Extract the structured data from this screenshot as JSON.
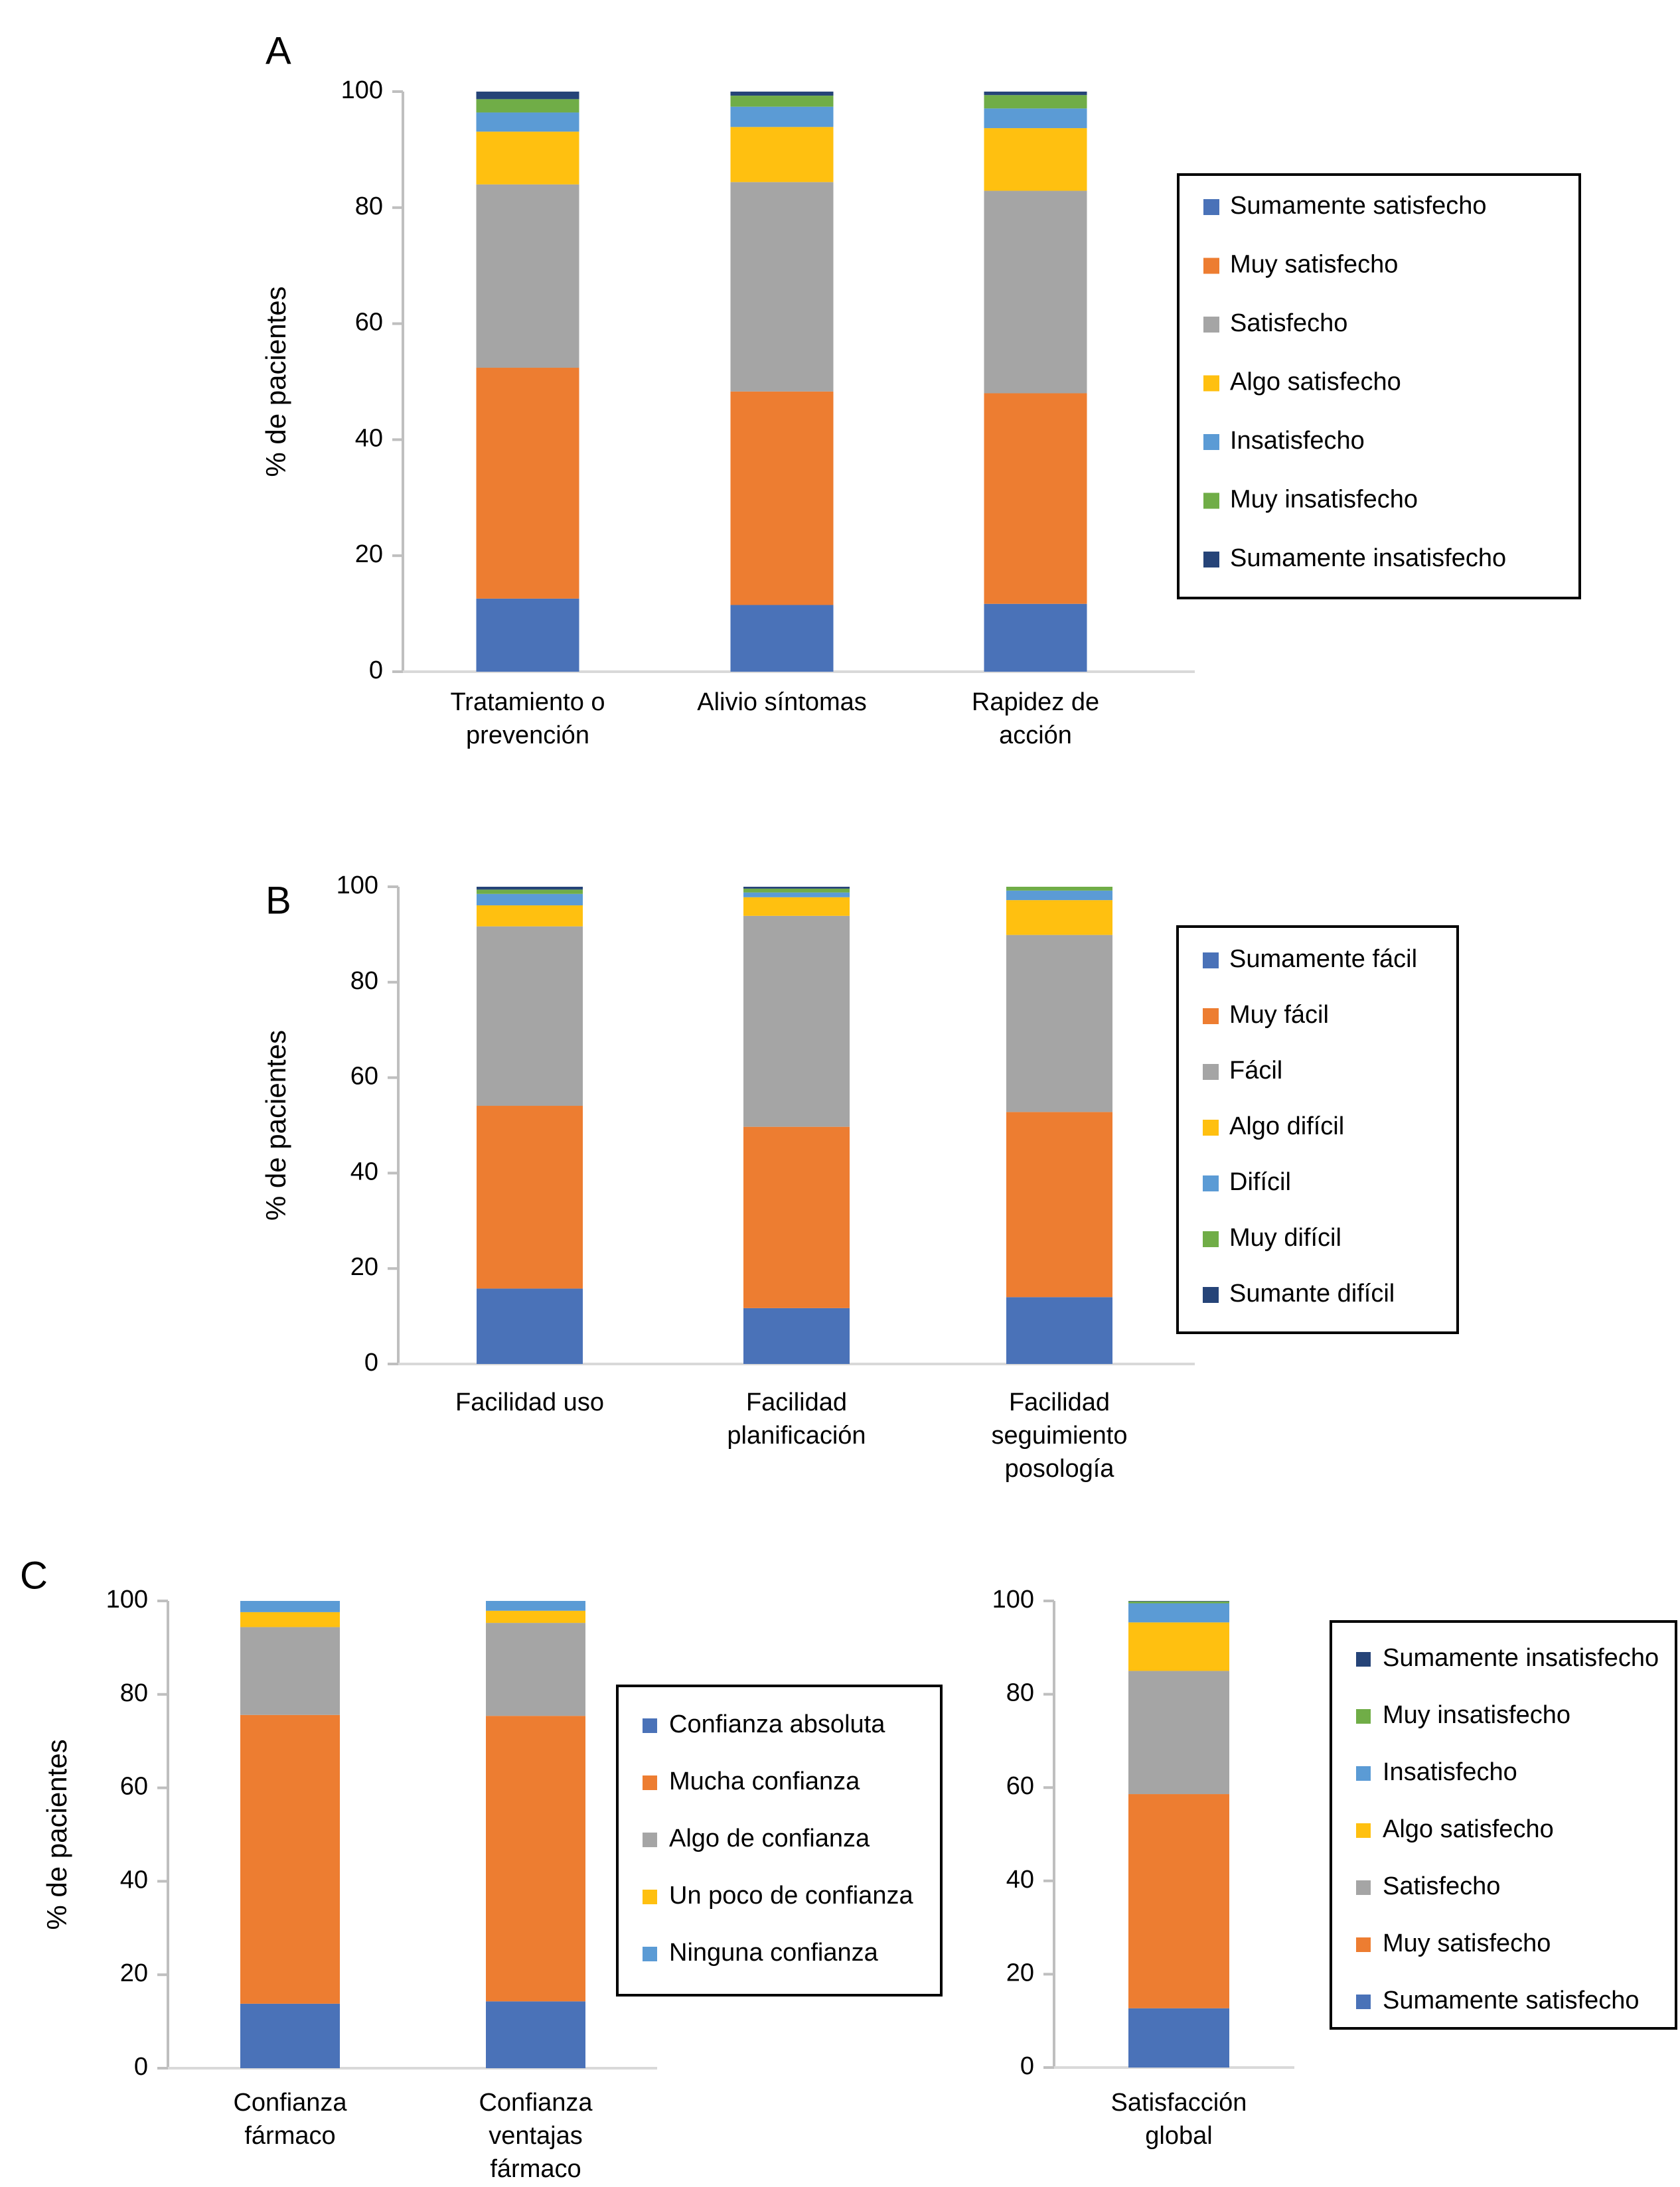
{
  "colors": {
    "blue": "#4a72b8",
    "orange": "#ed7d31",
    "gray": "#a5a5a5",
    "yellow": "#ffc010",
    "lightblue": "#5b9bd5",
    "green": "#70ad47",
    "navy": "#264478",
    "axis": "#bfbfbf"
  },
  "chart_data": [
    {
      "id": "A",
      "panel_label": "A",
      "type": "bar",
      "stacked": true,
      "ylabel": "% de pacientes",
      "ylim": [
        0,
        100
      ],
      "yticks": [
        0,
        20,
        40,
        60,
        80,
        100
      ],
      "categories": [
        "Tratamiento o prevención",
        "Alivio síntomas",
        "Rapidez de acción"
      ],
      "category_lines": [
        [
          "Tratamiento o",
          "prevención"
        ],
        [
          "Alivio síntomas"
        ],
        [
          "Rapidez de",
          "acción"
        ]
      ],
      "legend_position": "right",
      "legend_order": [
        0,
        1,
        2,
        3,
        4,
        5,
        6
      ],
      "series": [
        {
          "name": "Sumamente satisfecho",
          "color": "#4a72b8",
          "values": [
            12.6,
            11.5,
            11.7
          ]
        },
        {
          "name": "Muy satisfecho",
          "color": "#ed7d31",
          "values": [
            39.8,
            36.8,
            36.3
          ]
        },
        {
          "name": "Satisfecho",
          "color": "#a5a5a5",
          "values": [
            31.6,
            36.1,
            34.9
          ]
        },
        {
          "name": "Algo satisfecho",
          "color": "#ffc010",
          "values": [
            9.1,
            9.5,
            10.8
          ]
        },
        {
          "name": "Insatisfecho",
          "color": "#5b9bd5",
          "values": [
            3.3,
            3.5,
            3.4
          ]
        },
        {
          "name": "Muy insatisfecho",
          "color": "#70ad47",
          "values": [
            2.3,
            1.9,
            2.3
          ]
        },
        {
          "name": "Sumamente insatisfecho",
          "color": "#264478",
          "values": [
            1.3,
            0.7,
            0.6
          ]
        }
      ]
    },
    {
      "id": "B",
      "panel_label": "B",
      "type": "bar",
      "stacked": true,
      "ylabel": "% de pacientes",
      "ylim": [
        0,
        100
      ],
      "yticks": [
        0,
        20,
        40,
        60,
        80,
        100
      ],
      "categories": [
        "Facilidad uso",
        "Facilidad planificación",
        "Facilidad seguimiento posología"
      ],
      "category_lines": [
        [
          "Facilidad uso"
        ],
        [
          "Facilidad",
          "planificación"
        ],
        [
          "Facilidad",
          "seguimiento",
          "posología"
        ]
      ],
      "legend_position": "right",
      "legend_order": [
        0,
        1,
        2,
        3,
        4,
        5,
        6
      ],
      "series": [
        {
          "name": "Sumamente fácil",
          "color": "#4a72b8",
          "values": [
            15.8,
            11.7,
            14.0
          ]
        },
        {
          "name": "Muy fácil",
          "color": "#ed7d31",
          "values": [
            38.3,
            38.0,
            38.8
          ]
        },
        {
          "name": "Fácil",
          "color": "#a5a5a5",
          "values": [
            37.6,
            44.2,
            37.1
          ]
        },
        {
          "name": "Algo difícil",
          "color": "#ffc010",
          "values": [
            4.4,
            3.9,
            7.3
          ]
        },
        {
          "name": "Difícil",
          "color": "#5b9bd5",
          "values": [
            2.4,
            1.0,
            2.0
          ]
        },
        {
          "name": "Muy difícil",
          "color": "#70ad47",
          "values": [
            0.9,
            0.8,
            0.8
          ]
        },
        {
          "name": "Sumante difícil",
          "color": "#264478",
          "values": [
            0.6,
            0.4,
            0.0
          ]
        }
      ]
    },
    {
      "id": "C1",
      "panel_label": "C",
      "type": "bar",
      "stacked": true,
      "ylabel": "% de pacientes",
      "ylim": [
        0,
        100
      ],
      "yticks": [
        0,
        20,
        40,
        60,
        80,
        100
      ],
      "categories": [
        "Confianza fármaco",
        "Confianza ventajas fármaco"
      ],
      "category_lines": [
        [
          "Confianza",
          "fármaco"
        ],
        [
          "Confianza",
          "ventajas",
          "fármaco"
        ]
      ],
      "legend_position": "right",
      "legend_order": [
        0,
        1,
        2,
        3,
        4
      ],
      "series": [
        {
          "name": "Confianza absoluta",
          "color": "#4a72b8",
          "values": [
            13.8,
            14.3
          ]
        },
        {
          "name": "Mucha confianza",
          "color": "#ed7d31",
          "values": [
            61.8,
            61.1
          ]
        },
        {
          "name": "Algo de confianza",
          "color": "#a5a5a5",
          "values": [
            18.8,
            19.9
          ]
        },
        {
          "name": "Un poco de confianza",
          "color": "#ffc010",
          "values": [
            3.2,
            2.6
          ]
        },
        {
          "name": "Ninguna confianza",
          "color": "#5b9bd5",
          "values": [
            2.4,
            2.1
          ]
        }
      ]
    },
    {
      "id": "C2",
      "panel_label": "",
      "type": "bar",
      "stacked": true,
      "ylabel": "",
      "ylim": [
        0,
        100
      ],
      "yticks": [
        0,
        20,
        40,
        60,
        80,
        100
      ],
      "categories": [
        "Satisfacción global"
      ],
      "category_lines": [
        [
          "Satisfacción",
          "global"
        ]
      ],
      "legend_position": "right",
      "legend_order": [
        6,
        5,
        4,
        3,
        2,
        1,
        0
      ],
      "series": [
        {
          "name": "Sumamente satisfecho",
          "color": "#4a72b8",
          "values": [
            12.7
          ]
        },
        {
          "name": "Muy satisfecho",
          "color": "#ed7d31",
          "values": [
            45.9
          ]
        },
        {
          "name": "Satisfecho",
          "color": "#a5a5a5",
          "values": [
            26.4
          ]
        },
        {
          "name": "Algo satisfecho",
          "color": "#ffc010",
          "values": [
            10.4
          ]
        },
        {
          "name": "Insatisfecho",
          "color": "#5b9bd5",
          "values": [
            4.1
          ]
        },
        {
          "name": "Muy insatisfecho",
          "color": "#70ad47",
          "values": [
            0.4
          ]
        },
        {
          "name": "Sumamente insatisfecho",
          "color": "#264478",
          "values": [
            0.1
          ]
        }
      ]
    }
  ]
}
